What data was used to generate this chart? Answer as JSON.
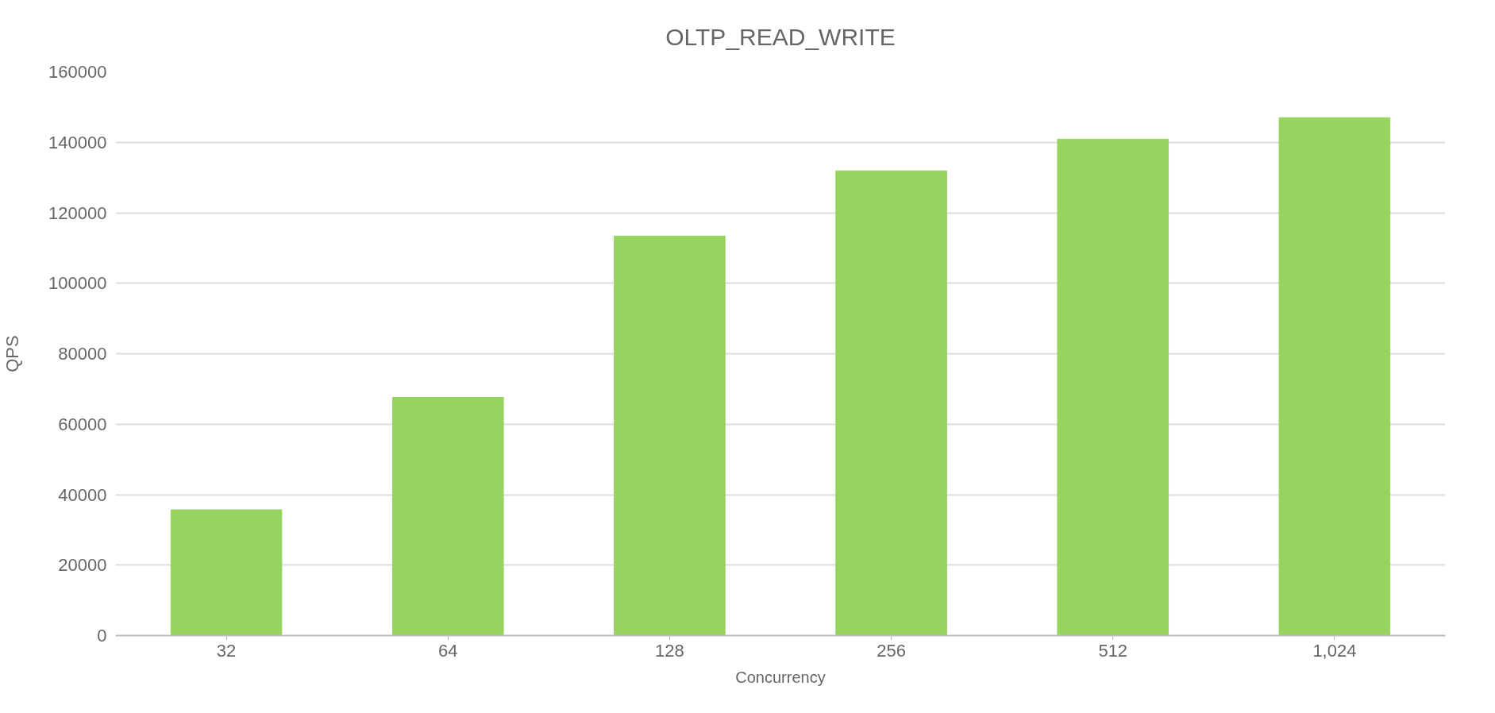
{
  "chart_data": {
    "type": "bar",
    "title": "OLTP_READ_WRITE",
    "xlabel": "Concurrency",
    "ylabel": "QPS",
    "categories": [
      "32",
      "64",
      "128",
      "256",
      "512",
      "1,024"
    ],
    "values": [
      35700,
      67600,
      113400,
      131900,
      140900,
      147000
    ],
    "color": "#96d35f",
    "ylim": [
      0,
      160000
    ],
    "yticks": [
      0,
      20000,
      40000,
      60000,
      80000,
      100000,
      120000,
      140000,
      160000
    ],
    "grid": "y"
  }
}
